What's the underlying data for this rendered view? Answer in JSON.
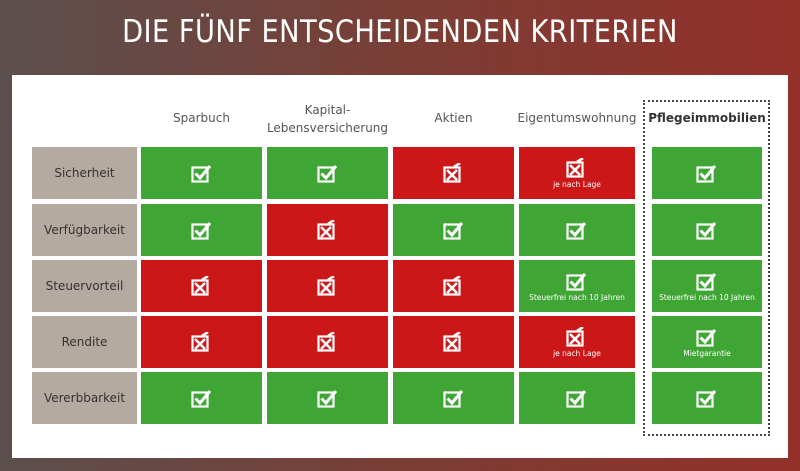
{
  "title": "DIE FÜNF ENTSCHEIDENDEN KRITERIEN",
  "colors": {
    "yes": "#3fa535",
    "no": "#cc1719",
    "label": "#b5aaa0"
  },
  "columns": [
    "Sparbuch",
    "Kapital-\nLebensversicherung",
    "Aktien",
    "Eigentumswohnung",
    "Pflegeimmobilien"
  ],
  "highlight_column": "Pflegeimmobilien",
  "rows": [
    {
      "label": "Sicherheit",
      "cells": [
        {
          "status": "check"
        },
        {
          "status": "check"
        },
        {
          "status": "cross"
        },
        {
          "status": "cross",
          "note": "je nach Lage"
        },
        {
          "status": "check"
        }
      ]
    },
    {
      "label": "Verfügbarkeit",
      "cells": [
        {
          "status": "check"
        },
        {
          "status": "cross"
        },
        {
          "status": "check"
        },
        {
          "status": "check"
        },
        {
          "status": "check"
        }
      ]
    },
    {
      "label": "Steuervorteil",
      "cells": [
        {
          "status": "cross"
        },
        {
          "status": "cross"
        },
        {
          "status": "cross"
        },
        {
          "status": "check",
          "note": "Steuerfrei nach 10 Jahren"
        },
        {
          "status": "check",
          "note": "Steuerfrei nach 10 Jahren"
        }
      ]
    },
    {
      "label": "Rendite",
      "cells": [
        {
          "status": "cross"
        },
        {
          "status": "cross"
        },
        {
          "status": "cross"
        },
        {
          "status": "cross",
          "note": "je nach Lage"
        },
        {
          "status": "check",
          "note": "Mietgarantie"
        }
      ]
    },
    {
      "label": "Vererbbarkeit",
      "cells": [
        {
          "status": "check"
        },
        {
          "status": "check"
        },
        {
          "status": "check"
        },
        {
          "status": "check"
        },
        {
          "status": "check"
        }
      ]
    }
  ]
}
